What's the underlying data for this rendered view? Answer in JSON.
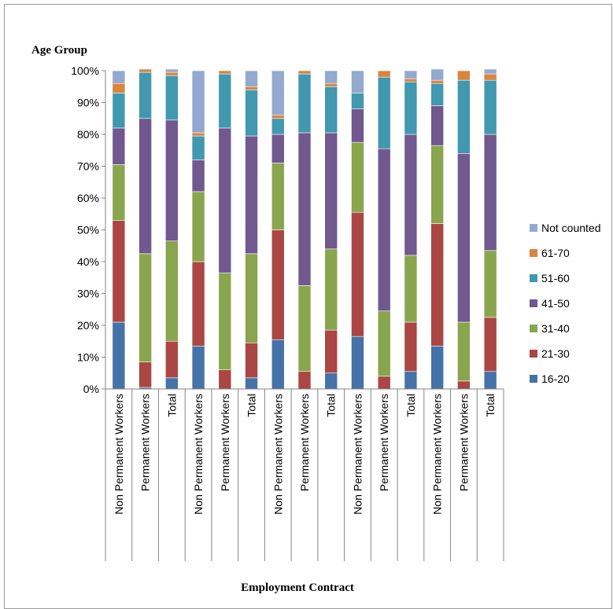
{
  "chart_data": {
    "type": "bar",
    "stacked": true,
    "title": "",
    "ylabel": "Age Group",
    "xlabel": "Employment Contract",
    "ylim": [
      0,
      100
    ],
    "y_ticks": [
      "0%",
      "10%",
      "20%",
      "30%",
      "40%",
      "50%",
      "60%",
      "70%",
      "80%",
      "90%",
      "100%"
    ],
    "categories": [
      "Non Permanent Workers",
      "Permanent Workers",
      "Total",
      "Non Permanent Workers",
      "Permanent Workers",
      "Total",
      "Non Permanent Workers",
      "Permanent Workers",
      "Total",
      "Non Permanent Workers",
      "Permanent Workers",
      "Total",
      "Non Permanent Workers",
      "Permanent Workers",
      "Total"
    ],
    "legend_position": "right",
    "series": [
      {
        "name": "16-20",
        "color": "#4572A7",
        "values": [
          21,
          0.5,
          3.5,
          13.5,
          0,
          3.5,
          15.5,
          0,
          5,
          16.5,
          0,
          5.5,
          13.5,
          0,
          5.5
        ]
      },
      {
        "name": "21-30",
        "color": "#AA4643",
        "values": [
          32,
          8,
          11.5,
          26.5,
          6,
          11,
          34.5,
          5.5,
          13.5,
          39,
          4,
          15.5,
          38.5,
          2.5,
          17
        ]
      },
      {
        "name": "31-40",
        "color": "#89A54E",
        "values": [
          17.5,
          34,
          31.5,
          22,
          30.5,
          28,
          21,
          27,
          25.5,
          22,
          20.5,
          21,
          24.5,
          18.5,
          21
        ]
      },
      {
        "name": "41-50",
        "color": "#71588F",
        "values": [
          11.5,
          42.5,
          38,
          10,
          45.5,
          37,
          9,
          48,
          36.5,
          10.5,
          51,
          38,
          12.5,
          53,
          36.5
        ]
      },
      {
        "name": "51-60",
        "color": "#4198AF",
        "values": [
          11,
          14.5,
          14,
          7.5,
          17,
          14.5,
          5,
          18.5,
          14.5,
          5,
          22.5,
          16.5,
          7,
          23,
          17
        ]
      },
      {
        "name": "61-70",
        "color": "#DB843D",
        "values": [
          3,
          1,
          1,
          1,
          1,
          1,
          1,
          1,
          1,
          0,
          2,
          1,
          1,
          3,
          2
        ]
      },
      {
        "name": "Not counted",
        "color": "#93A9CF",
        "values": [
          4,
          0,
          1,
          19.5,
          0,
          5,
          14,
          0,
          4,
          7,
          0,
          2.5,
          3.5,
          0,
          1.5
        ]
      }
    ]
  }
}
